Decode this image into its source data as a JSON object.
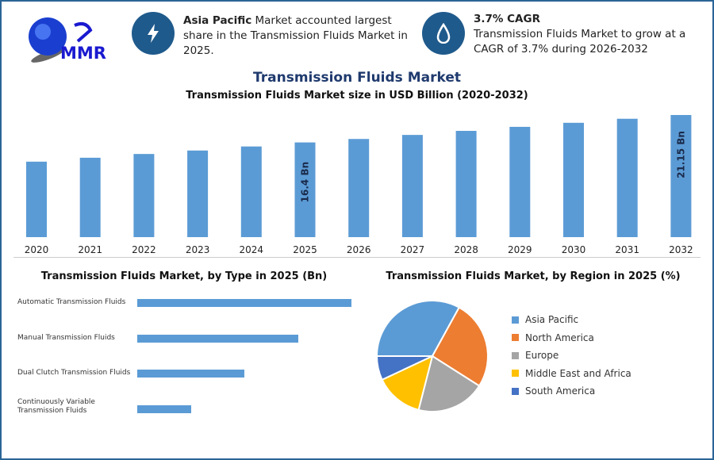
{
  "logo": {
    "text": "MMR"
  },
  "info1": {
    "bold": "Asia Pacific",
    "text": " Market accounted largest share in the Transmission Fluids Market in 2025.",
    "icon": "lightning-icon"
  },
  "info2": {
    "bold": "3.7% CAGR",
    "text": "Transmission Fluids Market to grow at a CAGR of 3.7% during 2026-2032",
    "icon": "drop-icon"
  },
  "colors": {
    "bar": "#5b9bd5",
    "accent": "#1f5a8c",
    "title": "#1f3a6e"
  },
  "chart_data": [
    {
      "type": "bar",
      "title": "Transmission Fluids Market",
      "subtitle": "Transmission Fluids Market size in USD Billion (2020-2032)",
      "categories": [
        "2020",
        "2021",
        "2022",
        "2023",
        "2024",
        "2025",
        "2026",
        "2027",
        "2028",
        "2029",
        "2030",
        "2031",
        "2032"
      ],
      "values": [
        13.07,
        13.75,
        14.4,
        15.0,
        15.7,
        16.4,
        17.0,
        17.7,
        18.4,
        19.1,
        19.8,
        20.5,
        21.15
      ],
      "data_labels": {
        "2025": "16.4 Bn",
        "2032": "21.15 Bn"
      },
      "ylim": [
        0,
        21.15
      ]
    },
    {
      "type": "bar",
      "orientation": "horizontal",
      "title": "Transmission Fluids Market, by Type in 2025 (Bn)",
      "categories": [
        "Automatic Transmission Fluids",
        "Manual Transmission Fluids",
        "Dual Clutch Transmission Fluids",
        "Continuously Variable Transmission Fluids"
      ],
      "values": [
        6.56,
        4.92,
        3.28,
        1.64
      ]
    },
    {
      "type": "pie",
      "title": "Transmission Fluids Market, by Region in 2025 (%)",
      "categories": [
        "Asia Pacific",
        "North America",
        "Europe",
        "Middle East and Africa",
        "South America"
      ],
      "values": [
        33,
        26,
        20,
        14,
        7
      ],
      "colors": [
        "#5b9bd5",
        "#ed7d31",
        "#a5a5a5",
        "#ffc000",
        "#4472c4"
      ]
    }
  ]
}
